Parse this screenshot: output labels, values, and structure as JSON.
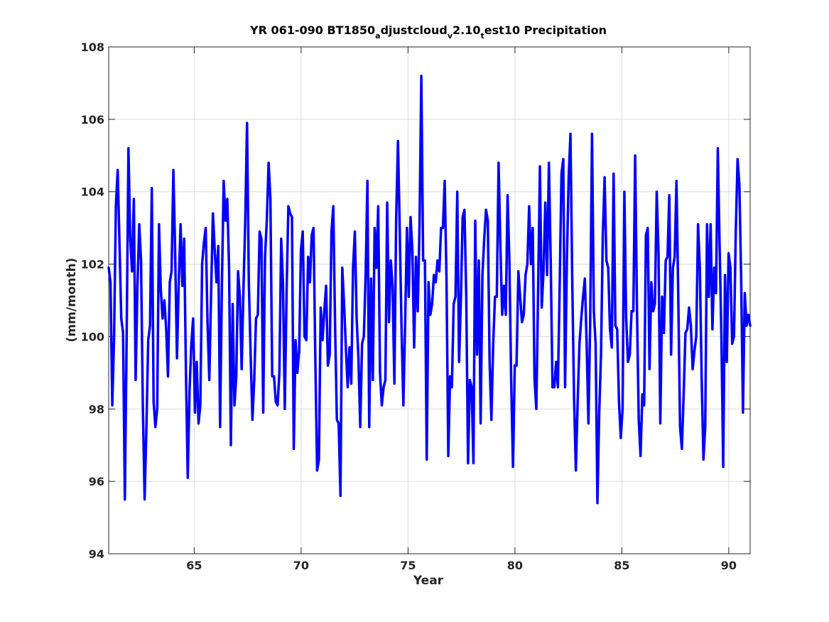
{
  "chart_data": {
    "type": "line",
    "title_parts": [
      {
        "text": "YR 061-090 BT1850",
        "sub": false
      },
      {
        "text": "a",
        "sub": true
      },
      {
        "text": "djustcloud",
        "sub": false
      },
      {
        "text": "v",
        "sub": true
      },
      {
        "text": "2.10",
        "sub": false
      },
      {
        "text": "t",
        "sub": true
      },
      {
        "text": "est10 Precipitation",
        "sub": false
      }
    ],
    "xlabel": "Year",
    "ylabel": "(mm/month)",
    "xlim": [
      61,
      91
    ],
    "ylim": [
      94,
      108
    ],
    "xticks": [
      65,
      70,
      75,
      80,
      85,
      90
    ],
    "yticks": [
      94,
      96,
      98,
      100,
      102,
      104,
      106,
      108
    ],
    "grid": true,
    "line_color": "#0000ff",
    "series": [
      {
        "values": [
          101.9,
          101.5,
          98.1,
          100.0,
          103.6,
          104.6,
          102.6,
          100.5,
          100.1,
          95.5,
          100.0,
          105.2,
          102.7,
          101.8,
          103.8,
          98.8,
          101.4,
          103.1,
          102.1,
          98.1,
          95.5,
          97.5,
          99.9,
          100.3,
          104.1,
          98.2,
          97.5,
          98.0,
          103.1,
          101.3,
          100.5,
          101.0,
          100.2,
          98.9,
          101.5,
          101.8,
          104.6,
          102.3,
          99.4,
          101.5,
          103.1,
          101.4,
          102.7,
          99.0,
          96.1,
          98.5,
          99.8,
          100.5,
          97.9,
          99.3,
          97.6,
          98.1,
          102.0,
          102.6,
          103.0,
          100.4,
          98.8,
          101.2,
          103.4,
          102.4,
          101.5,
          102.5,
          97.5,
          101.4,
          104.3,
          103.2,
          103.8,
          101.9,
          97.0,
          100.9,
          98.1,
          98.9,
          101.8,
          101.1,
          99.1,
          101.3,
          103.2,
          105.9,
          101.5,
          99.5,
          97.7,
          98.8,
          100.5,
          100.6,
          102.9,
          102.7,
          97.9,
          102.2,
          103.2,
          104.8,
          103.8,
          98.9,
          98.9,
          98.2,
          98.1,
          99.0,
          102.7,
          101.5,
          98.0,
          101.2,
          103.6,
          103.4,
          103.3,
          96.9,
          99.9,
          99.0,
          99.6,
          102.4,
          102.9,
          100.0,
          99.9,
          102.2,
          101.5,
          102.8,
          103.0,
          99.4,
          96.3,
          96.6,
          100.8,
          99.9,
          100.7,
          101.4,
          99.2,
          99.5,
          102.9,
          103.6,
          100.3,
          97.7,
          97.6,
          95.6,
          101.9,
          100.9,
          99.7,
          98.6,
          99.7,
          98.7,
          101.9,
          102.9,
          100.5,
          99.4,
          97.5,
          99.8,
          100.0,
          101.7,
          104.3,
          97.5,
          101.6,
          98.8,
          103.0,
          101.9,
          103.6,
          99.0,
          98.1,
          98.6,
          98.8,
          103.7,
          100.4,
          102.1,
          101.4,
          98.7,
          103.3,
          105.4,
          102.9,
          100.2,
          98.1,
          100.4,
          103.0,
          101.1,
          103.3,
          102.4,
          99.7,
          102.2,
          100.7,
          103.1,
          107.2,
          102.1,
          102.1,
          96.6,
          101.5,
          100.6,
          100.9,
          101.7,
          101.5,
          102.1,
          101.8,
          103.0,
          103.0,
          104.3,
          101.6,
          96.7,
          98.9,
          98.6,
          100.9,
          101.1,
          104.0,
          99.3,
          101.0,
          103.3,
          103.5,
          101.1,
          96.5,
          98.8,
          98.6,
          96.5,
          103.2,
          99.5,
          102.1,
          97.6,
          101.7,
          102.7,
          103.5,
          103.2,
          99.3,
          97.7,
          99.8,
          101.1,
          101.1,
          104.8,
          102.5,
          100.6,
          101.4,
          100.6,
          103.9,
          102.1,
          98.8,
          96.4,
          99.2,
          99.2,
          101.8,
          101.1,
          100.4,
          100.6,
          101.7,
          102.0,
          103.6,
          102.0,
          103.0,
          98.8,
          98.0,
          101.3,
          104.7,
          100.8,
          101.8,
          103.7,
          101.7,
          104.8,
          102.1,
          98.6,
          98.6,
          99.3,
          98.6,
          101.4,
          104.5,
          104.9,
          98.6,
          102.1,
          104.4,
          105.6,
          101.5,
          98.3,
          96.3,
          98.2,
          99.8,
          100.5,
          101.1,
          101.6,
          99.8,
          97.6,
          100.5,
          105.6,
          100.7,
          99.8,
          95.4,
          97.9,
          99.5,
          102.8,
          104.4,
          102.1,
          101.9,
          100.2,
          99.7,
          104.5,
          100.3,
          100.2,
          98.2,
          97.2,
          98.0,
          104.0,
          100.5,
          99.3,
          99.5,
          100.7,
          100.7,
          105.0,
          100.8,
          97.7,
          96.7,
          98.4,
          98.1,
          102.8,
          103.0,
          99.1,
          101.5,
          100.7,
          100.9,
          104.0,
          102.3,
          97.6,
          101.1,
          100.1,
          102.1,
          102.2,
          103.9,
          99.5,
          101.9,
          102.2,
          104.3,
          101.1,
          97.5,
          96.9,
          98.4,
          100.1,
          100.2,
          100.8,
          100.3,
          99.1,
          99.6,
          100.0,
          103.1,
          101.9,
          98.9,
          96.6,
          97.5,
          103.1,
          101.1,
          103.1,
          100.2,
          101.9,
          101.2,
          105.2,
          102.5,
          100.0,
          96.4,
          101.7,
          99.3,
          102.3,
          101.9,
          99.8,
          100.0,
          102.9,
          104.9,
          104.2,
          101.6,
          97.9,
          101.2,
          100.3,
          100.6,
          100.3
        ]
      }
    ]
  }
}
